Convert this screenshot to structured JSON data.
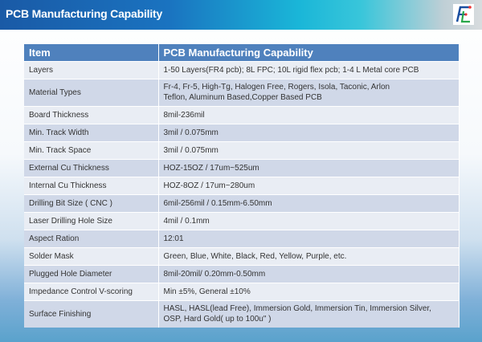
{
  "header": {
    "title": "PCB Manufacturing Capability",
    "logo_text": "FL"
  },
  "table": {
    "columns": [
      "Item",
      "PCB Manufacturing Capability"
    ],
    "rows": [
      {
        "item": "Layers",
        "value": "1-50 Layers(FR4 pcb); 8L FPC; 10L rigid flex pcb; 1-4 L Metal core PCB"
      },
      {
        "item": "Material Types",
        "value": "Fr-4, Fr-5, High-Tg, Halogen Free, Rogers, Isola, Taconic, Arlon",
        "value2": "Teflon,  Aluminum Based,Copper Based PCB"
      },
      {
        "item": "Board Thickness",
        "value": "8mil-236mil"
      },
      {
        "item": "Min. Track Width",
        "value": "3mil / 0.075mm"
      },
      {
        "item": "Min. Track Space",
        "value": "3mil / 0.075mm"
      },
      {
        "item": "External Cu Thickness",
        "value": "HOZ-15OZ / 17um~525um"
      },
      {
        "item": "Internal Cu Thickness",
        "value": "HOZ-8OZ / 17um~280um"
      },
      {
        "item": "Drilling Bit Size ( CNC )",
        "value": "6mil-256mil / 0.15mm-6.50mm"
      },
      {
        "item": "Laser Drilling Hole Size",
        "value": "4mil / 0.1mm"
      },
      {
        "item": "Aspect Ration",
        "value": "12:01"
      },
      {
        "item": "Solder Mask",
        "value": "Green, Blue, White, Black, Red, Yellow, Purple, etc."
      },
      {
        "item": "Plugged Hole Diameter",
        "value": "8mil-20mil/ 0.20mm-0.50mm"
      },
      {
        "item": "Impedance Control V-scoring",
        "value": "Min ±5%, General ±10%"
      },
      {
        "item": "Surface Finishing",
        "value": "HASL, HASL(lead Free), Immersion Gold, Immersion Tin, Immersion Silver,",
        "value2": "OSP, Hard Gold( up to 100u\" )"
      }
    ]
  }
}
